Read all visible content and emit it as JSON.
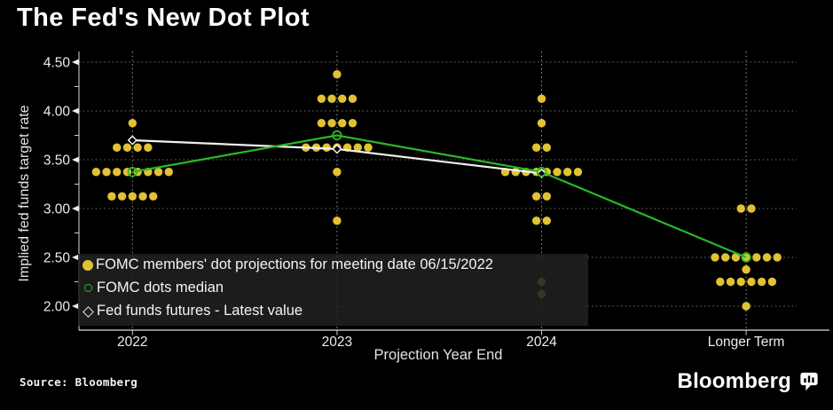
{
  "title": "The Fed's New Dot Plot",
  "source_note": "Source: Bloomberg",
  "brand": {
    "name": "Bloomberg"
  },
  "colors": {
    "background": "#000000",
    "dot": "#E1C232",
    "median": "#28B828",
    "futures": "#F0F0F0",
    "grid_h": "#6E6E6E",
    "grid_v": "#9A9A9A",
    "axis": "#D9D9D9",
    "tick_text": "#EDEDED",
    "legend_bg": "rgba(32,32,32,0.87)"
  },
  "legend": {
    "items": [
      {
        "marker": "filled-yellow-dot",
        "label": "FOMC members' dot projections for meeting date 06/15/2022"
      },
      {
        "marker": "open-green-circle",
        "label": "FOMC dots median"
      },
      {
        "marker": "open-white-diamond",
        "label": "Fed funds futures - Latest value"
      }
    ]
  },
  "chart_data": {
    "type": "scatter",
    "title": "The Fed's New Dot Plot",
    "xlabel": "Projection Year End",
    "ylabel": "Implied fed funds target rate",
    "categories": [
      "2022",
      "2023",
      "2024",
      "Longer Term"
    ],
    "ylim": [
      1.85,
      4.62
    ],
    "yticks_major": [
      2.0,
      2.5,
      3.0,
      3.5,
      4.0,
      4.5
    ],
    "yticks_minor": [
      2.25,
      2.75,
      3.25,
      3.75,
      4.25
    ],
    "grid": true,
    "legend_position": "lower-left",
    "series": [
      {
        "name": "FOMC members' dot projections for meeting date 06/15/2022",
        "type": "dot-cluster",
        "clusters": [
          {
            "category": "2022",
            "dots": [
              {
                "rate": 3.875,
                "count": 1
              },
              {
                "rate": 3.625,
                "count": 4
              },
              {
                "rate": 3.375,
                "count": 8
              },
              {
                "rate": 3.125,
                "count": 5
              }
            ]
          },
          {
            "category": "2023",
            "dots": [
              {
                "rate": 4.375,
                "count": 1
              },
              {
                "rate": 4.125,
                "count": 4
              },
              {
                "rate": 3.875,
                "count": 4
              },
              {
                "rate": 3.625,
                "count": 7
              },
              {
                "rate": 3.375,
                "count": 1
              },
              {
                "rate": 2.875,
                "count": 1
              }
            ]
          },
          {
            "category": "2024",
            "dots": [
              {
                "rate": 4.125,
                "count": 1
              },
              {
                "rate": 3.875,
                "count": 1
              },
              {
                "rate": 3.625,
                "count": 2
              },
              {
                "rate": 3.375,
                "count": 8
              },
              {
                "rate": 3.125,
                "count": 2
              },
              {
                "rate": 2.875,
                "count": 2
              },
              {
                "rate": 2.25,
                "count": 1
              },
              {
                "rate": 2.125,
                "count": 1
              }
            ]
          },
          {
            "category": "Longer Term",
            "dots": [
              {
                "rate": 3.0,
                "count": 2
              },
              {
                "rate": 2.5,
                "count": 7
              },
              {
                "rate": 2.375,
                "count": 1
              },
              {
                "rate": 2.25,
                "count": 6
              },
              {
                "rate": 2.0,
                "count": 1
              }
            ]
          }
        ]
      },
      {
        "name": "FOMC dots median",
        "type": "line",
        "marker": "open-circle",
        "categories": [
          "2022",
          "2023",
          "2024",
          "Longer Term"
        ],
        "values": [
          3.375,
          3.75,
          3.375,
          2.5
        ]
      },
      {
        "name": "Fed funds futures - Latest value",
        "type": "line",
        "marker": "open-diamond",
        "categories": [
          "2022",
          "2023",
          "2024"
        ],
        "values": [
          3.7,
          3.61,
          3.36
        ]
      }
    ]
  }
}
